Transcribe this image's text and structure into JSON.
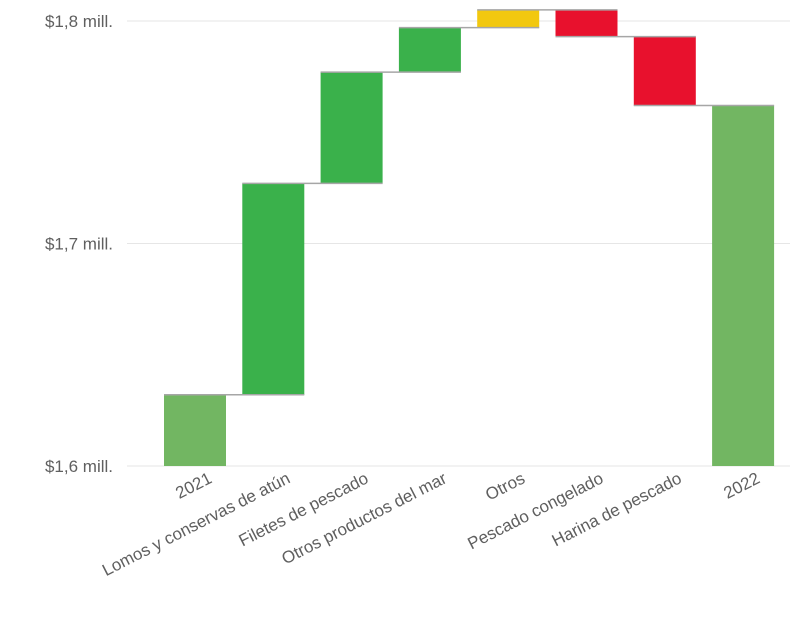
{
  "chart_data": {
    "type": "waterfall",
    "title": "",
    "xlabel": "",
    "ylabel": "",
    "ylim": [
      1.6,
      1.805
    ],
    "y_ticks": [
      {
        "value": 1.6,
        "label": "$1,6 mill."
      },
      {
        "value": 1.7,
        "label": "$1,7 mill."
      },
      {
        "value": 1.8,
        "label": "$1,8 mill."
      }
    ],
    "grid": true,
    "categories": [
      "2021",
      "Lomos y conservas de atún",
      "Filetes de pescado",
      "Otros productos del mar",
      "Otros",
      "Pescado congelado",
      "Harina de pescado",
      "2022"
    ],
    "bars": [
      {
        "category": "2021",
        "kind": "total",
        "start": 1.6,
        "end": 1.632
      },
      {
        "category": "Lomos y conservas de atún",
        "kind": "increase",
        "start": 1.632,
        "end": 1.727
      },
      {
        "category": "Filetes de pescado",
        "kind": "increase",
        "start": 1.727,
        "end": 1.777
      },
      {
        "category": "Otros productos del mar",
        "kind": "increase",
        "start": 1.777,
        "end": 1.797
      },
      {
        "category": "Otros",
        "kind": "other",
        "start": 1.797,
        "end": 1.805
      },
      {
        "category": "Pescado congelado",
        "kind": "decrease",
        "start": 1.805,
        "end": 1.793
      },
      {
        "category": "Harina de pescado",
        "kind": "decrease",
        "start": 1.793,
        "end": 1.762
      },
      {
        "category": "2022",
        "kind": "total",
        "start": 1.6,
        "end": 1.762
      }
    ],
    "colors": {
      "total": "#72b662",
      "increase": "#3ab14b",
      "decrease": "#e8112d",
      "other": "#f2c80f",
      "connector": "#a6a6a6",
      "grid": "#e6e6e6",
      "text": "#5f5f5f"
    }
  }
}
